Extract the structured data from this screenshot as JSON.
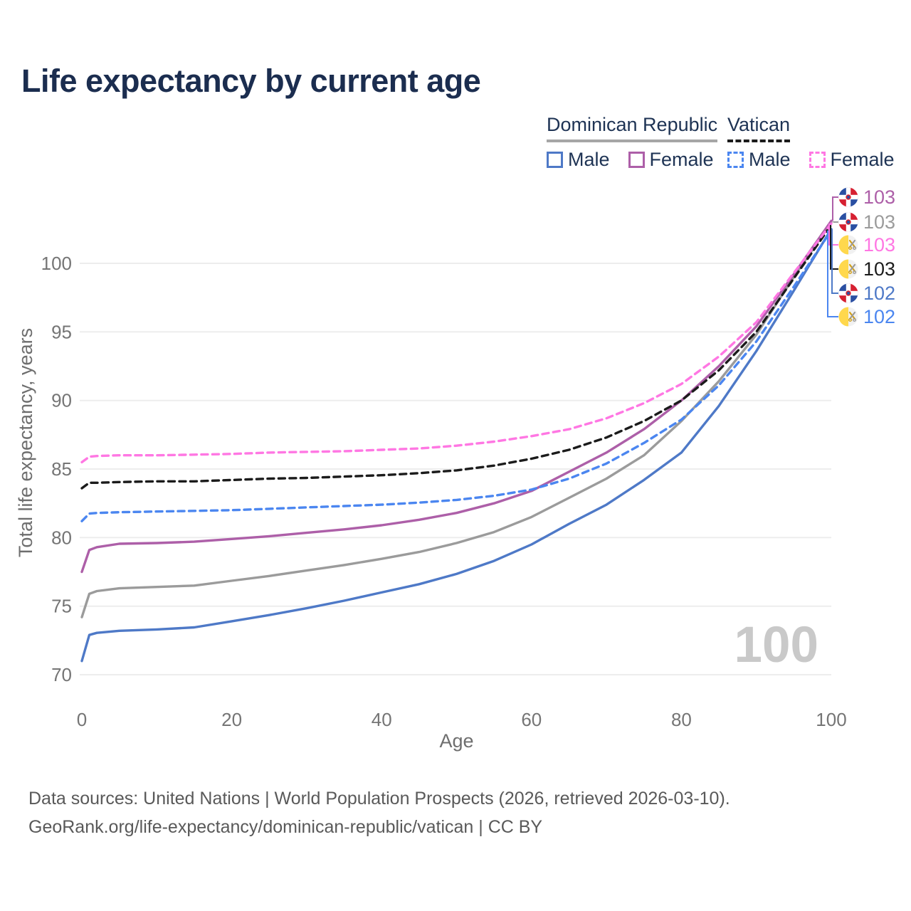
{
  "page_title": "Life expectancy by current age",
  "legend": {
    "groups": [
      {
        "label": "Dominican Republic",
        "underline": {
          "style": "solid",
          "color": "#a6a6a6"
        },
        "items": [
          {
            "label": "Male",
            "color": "#4e79c7",
            "line": "solid"
          },
          {
            "label": "Female",
            "color": "#ad5fa8",
            "line": "solid"
          }
        ]
      },
      {
        "label": "Vatican",
        "underline": {
          "style": "dashed",
          "color": "#1b1b1b"
        },
        "items": [
          {
            "label": "Male",
            "color": "#4b86f0",
            "line": "dashed"
          },
          {
            "label": "Female",
            "color": "#ff77e3",
            "line": "dashed"
          }
        ]
      }
    ]
  },
  "chart_data": {
    "type": "line",
    "title": "Life expectancy by current age",
    "xlabel": "Age",
    "ylabel": "Total life expectancy, years",
    "xlim": [
      0,
      100
    ],
    "ylim": [
      68.5,
      104
    ],
    "xticks": [
      0,
      20,
      40,
      60,
      80,
      100
    ],
    "yticks": [
      70,
      75,
      80,
      85,
      90,
      95,
      100
    ],
    "grid": "horizontal only",
    "legend_position": "top-right",
    "watermark": "100",
    "x": [
      0,
      1,
      2,
      5,
      10,
      15,
      20,
      25,
      30,
      35,
      40,
      45,
      50,
      55,
      60,
      65,
      70,
      75,
      80,
      85,
      90,
      95,
      100
    ],
    "series": [
      {
        "id": "dr-all",
        "name": "Dominican Republic All",
        "country": "Dominican Republic",
        "line": "solid",
        "color": "#9b9b9b",
        "values": [
          74.2,
          75.9,
          76.1,
          76.3,
          76.4,
          76.5,
          76.85,
          77.2,
          77.6,
          78.0,
          78.45,
          78.95,
          79.6,
          80.4,
          81.5,
          82.9,
          84.3,
          86.0,
          88.5,
          91.4,
          94.8,
          99.0,
          103.0
        ]
      },
      {
        "id": "dr-male",
        "name": "Dominican Republic Male",
        "country": "Dominican Republic",
        "line": "solid",
        "color": "#4e79c7",
        "values": [
          71.0,
          72.9,
          73.05,
          73.2,
          73.3,
          73.45,
          73.9,
          74.35,
          74.85,
          75.4,
          76.0,
          76.6,
          77.35,
          78.3,
          79.5,
          81.0,
          82.4,
          84.2,
          86.2,
          89.6,
          93.6,
          98.0,
          102.5
        ]
      },
      {
        "id": "dr-female",
        "name": "Dominican Republic Female",
        "country": "Dominican Republic",
        "line": "solid",
        "color": "#ad5fa8",
        "values": [
          77.5,
          79.1,
          79.3,
          79.55,
          79.6,
          79.7,
          79.9,
          80.1,
          80.35,
          80.6,
          80.9,
          81.3,
          81.8,
          82.5,
          83.4,
          84.8,
          86.2,
          87.9,
          90.0,
          92.5,
          95.4,
          99.2,
          103.1
        ]
      },
      {
        "id": "va-male",
        "name": "Vatican Male",
        "country": "Vatican",
        "line": "dashed",
        "color": "#4b86f0",
        "values": [
          81.2,
          81.75,
          81.8,
          81.85,
          81.9,
          81.95,
          82.0,
          82.1,
          82.2,
          82.3,
          82.4,
          82.55,
          82.75,
          83.05,
          83.5,
          84.3,
          85.4,
          86.9,
          88.6,
          91.1,
          94.3,
          98.3,
          102.4
        ]
      },
      {
        "id": "va-all",
        "name": "Vatican All",
        "country": "Vatican",
        "line": "dashed",
        "color": "#1b1b1b",
        "values": [
          83.6,
          84.0,
          84.0,
          84.05,
          84.1,
          84.1,
          84.2,
          84.3,
          84.35,
          84.45,
          84.55,
          84.7,
          84.9,
          85.25,
          85.75,
          86.4,
          87.3,
          88.5,
          90.0,
          92.2,
          95.0,
          98.9,
          102.8
        ]
      },
      {
        "id": "va-female",
        "name": "Vatican Female",
        "country": "Vatican",
        "line": "dashed",
        "color": "#ff77e3",
        "values": [
          85.5,
          85.9,
          85.95,
          86.0,
          86.0,
          86.05,
          86.1,
          86.2,
          86.25,
          86.3,
          86.4,
          86.5,
          86.7,
          87.0,
          87.4,
          87.9,
          88.7,
          89.8,
          91.2,
          93.2,
          95.7,
          99.3,
          102.9
        ]
      }
    ],
    "end_labels": [
      {
        "flag": "dominican-republic",
        "value": "103",
        "series": "dr-female"
      },
      {
        "flag": "dominican-republic",
        "value": "103",
        "series": "dr-all"
      },
      {
        "flag": "vatican",
        "value": "103",
        "series": "va-female"
      },
      {
        "flag": "vatican",
        "value": "103",
        "series": "va-all"
      },
      {
        "flag": "dominican-republic",
        "value": "102",
        "series": "dr-male"
      },
      {
        "flag": "vatican",
        "value": "102",
        "series": "va-male"
      }
    ]
  },
  "footer": {
    "line1": "Data sources: United Nations | World Population Prospects (2026, retrieved 2026-03-10).",
    "line2": "GeoRank.org/life-expectancy/dominican-republic/vatican | CC BY"
  }
}
